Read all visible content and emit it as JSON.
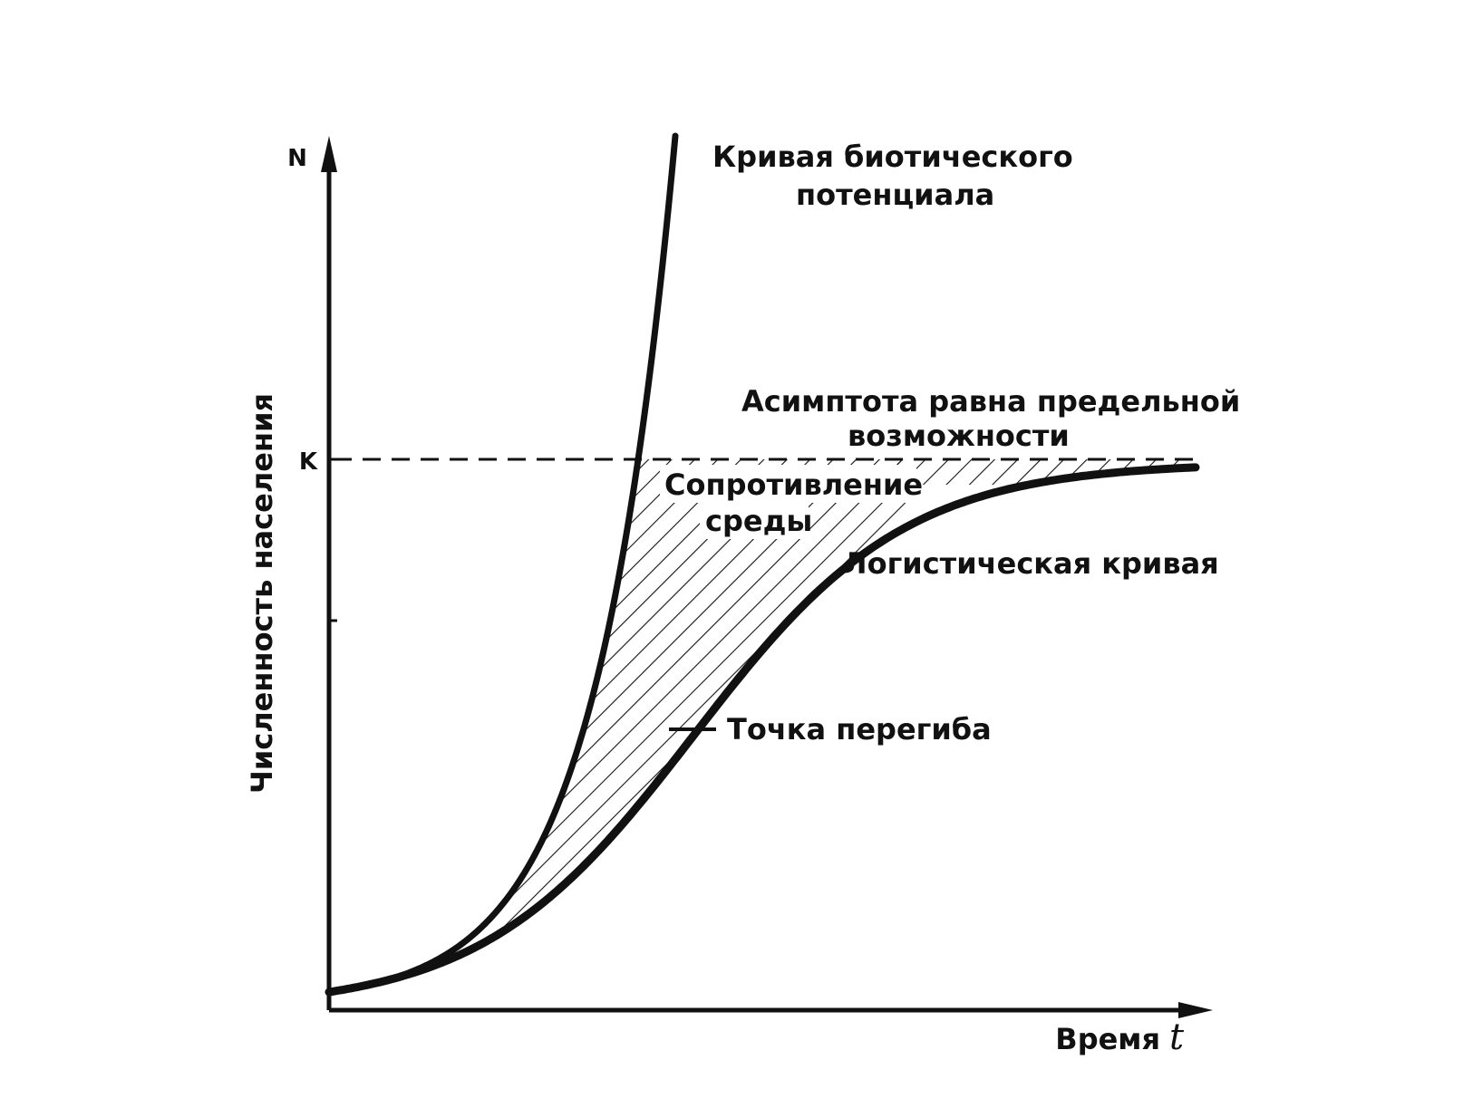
{
  "chart_data": {
    "type": "line",
    "title": "",
    "xlabel": "Время",
    "xlabel_symbol": "t",
    "ylabel": "Численность населения",
    "y_axis_marks": {
      "top": "N",
      "asymptote": "K"
    },
    "grid": false,
    "series": [
      {
        "name": "Кривая биотического потенциала",
        "label_lines": [
          "Кривая биотического",
          "потенциала"
        ],
        "shape": "exponential"
      },
      {
        "name": "Логистическая кривая",
        "label_lines": [
          "Логистическая кривая"
        ],
        "shape": "logistic"
      }
    ],
    "annotations": {
      "asymptote": [
        "Асимптота равна предельной",
        "возможности"
      ],
      "resistance": [
        "Сопротивление",
        "среды"
      ],
      "inflection": "Точка перегиба"
    },
    "colors": {
      "ink": "#111111",
      "background": "#ffffff"
    }
  }
}
